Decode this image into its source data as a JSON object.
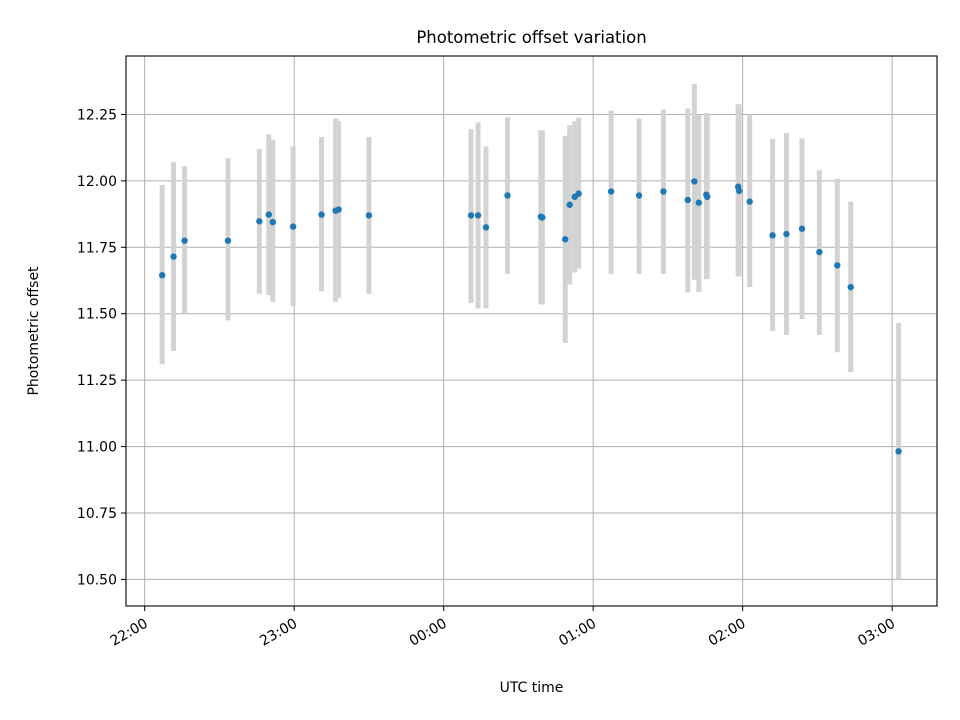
{
  "chart_data": {
    "type": "scatter",
    "title": "Photometric offset variation",
    "xlabel": "UTC time",
    "ylabel": "Photometric offset",
    "x_unit": "hours since 22:00 UTC",
    "xlim": [
      -0.125,
      5.3
    ],
    "ylim": [
      10.4,
      12.47
    ],
    "grid": true,
    "x_ticks": [
      {
        "x": 0,
        "label": "22:00"
      },
      {
        "x": 1,
        "label": "23:00"
      },
      {
        "x": 2,
        "label": "00:00"
      },
      {
        "x": 3,
        "label": "01:00"
      },
      {
        "x": 4,
        "label": "02:00"
      },
      {
        "x": 5,
        "label": "03:00"
      }
    ],
    "y_ticks": [
      {
        "y": 10.5,
        "label": "10.50"
      },
      {
        "y": 10.75,
        "label": "10.75"
      },
      {
        "y": 11.0,
        "label": "11.00"
      },
      {
        "y": 11.25,
        "label": "11.25"
      },
      {
        "y": 11.5,
        "label": "11.50"
      },
      {
        "y": 11.75,
        "label": "11.75"
      },
      {
        "y": 12.0,
        "label": "12.00"
      },
      {
        "y": 12.25,
        "label": "12.25"
      }
    ],
    "colors": {
      "point": "#1f77b4",
      "errorbar": "#d3d3d3",
      "grid": "#b0b0b0"
    },
    "points": [
      {
        "x": 0.117,
        "y": 11.645,
        "lo": 11.31,
        "hi": 11.985
      },
      {
        "x": 0.193,
        "y": 11.715,
        "lo": 11.36,
        "hi": 12.07
      },
      {
        "x": 0.267,
        "y": 11.775,
        "lo": 11.5,
        "hi": 12.055
      },
      {
        "x": 0.557,
        "y": 11.775,
        "lo": 11.475,
        "hi": 12.085
      },
      {
        "x": 0.767,
        "y": 11.848,
        "lo": 11.575,
        "hi": 12.12
      },
      {
        "x": 0.83,
        "y": 11.873,
        "lo": 11.57,
        "hi": 12.175
      },
      {
        "x": 0.857,
        "y": 11.845,
        "lo": 11.545,
        "hi": 12.155
      },
      {
        "x": 0.993,
        "y": 11.828,
        "lo": 11.53,
        "hi": 12.13
      },
      {
        "x": 1.183,
        "y": 11.873,
        "lo": 11.585,
        "hi": 12.165
      },
      {
        "x": 1.277,
        "y": 11.888,
        "lo": 11.545,
        "hi": 12.235
      },
      {
        "x": 1.297,
        "y": 11.892,
        "lo": 11.56,
        "hi": 12.225
      },
      {
        "x": 1.5,
        "y": 11.87,
        "lo": 11.575,
        "hi": 12.165
      },
      {
        "x": 2.183,
        "y": 11.87,
        "lo": 11.54,
        "hi": 12.195
      },
      {
        "x": 2.23,
        "y": 11.87,
        "lo": 11.52,
        "hi": 12.22
      },
      {
        "x": 2.283,
        "y": 11.825,
        "lo": 11.52,
        "hi": 12.13
      },
      {
        "x": 2.427,
        "y": 11.945,
        "lo": 11.65,
        "hi": 12.24
      },
      {
        "x": 2.65,
        "y": 11.865,
        "lo": 11.535,
        "hi": 12.19
      },
      {
        "x": 2.66,
        "y": 11.862,
        "lo": 11.535,
        "hi": 12.19
      },
      {
        "x": 2.813,
        "y": 11.78,
        "lo": 11.39,
        "hi": 12.17
      },
      {
        "x": 2.843,
        "y": 11.91,
        "lo": 11.61,
        "hi": 12.21
      },
      {
        "x": 2.877,
        "y": 11.94,
        "lo": 11.655,
        "hi": 12.225
      },
      {
        "x": 2.903,
        "y": 11.952,
        "lo": 11.67,
        "hi": 12.238
      },
      {
        "x": 3.12,
        "y": 11.96,
        "lo": 11.65,
        "hi": 12.265
      },
      {
        "x": 3.307,
        "y": 11.945,
        "lo": 11.65,
        "hi": 12.235
      },
      {
        "x": 3.47,
        "y": 11.96,
        "lo": 11.65,
        "hi": 12.268
      },
      {
        "x": 3.633,
        "y": 11.928,
        "lo": 11.58,
        "hi": 12.272
      },
      {
        "x": 3.677,
        "y": 11.998,
        "lo": 11.628,
        "hi": 12.365
      },
      {
        "x": 3.707,
        "y": 11.918,
        "lo": 11.582,
        "hi": 12.25
      },
      {
        "x": 3.757,
        "y": 11.948,
        "lo": 11.63,
        "hi": 12.255
      },
      {
        "x": 3.763,
        "y": 11.94,
        "lo": 11.632,
        "hi": 12.25
      },
      {
        "x": 3.97,
        "y": 11.978,
        "lo": 11.64,
        "hi": 12.29
      },
      {
        "x": 3.977,
        "y": 11.962,
        "lo": 11.64,
        "hi": 12.285
      },
      {
        "x": 4.047,
        "y": 11.922,
        "lo": 11.6,
        "hi": 12.25
      },
      {
        "x": 4.2,
        "y": 11.795,
        "lo": 11.435,
        "hi": 12.158
      },
      {
        "x": 4.293,
        "y": 11.8,
        "lo": 11.42,
        "hi": 12.18
      },
      {
        "x": 4.397,
        "y": 11.82,
        "lo": 11.48,
        "hi": 12.16
      },
      {
        "x": 4.513,
        "y": 11.732,
        "lo": 11.42,
        "hi": 12.04
      },
      {
        "x": 4.633,
        "y": 11.682,
        "lo": 11.355,
        "hi": 12.008
      },
      {
        "x": 4.723,
        "y": 11.6,
        "lo": 11.28,
        "hi": 11.922
      },
      {
        "x": 5.043,
        "y": 10.982,
        "lo": 10.5,
        "hi": 11.465
      }
    ]
  }
}
